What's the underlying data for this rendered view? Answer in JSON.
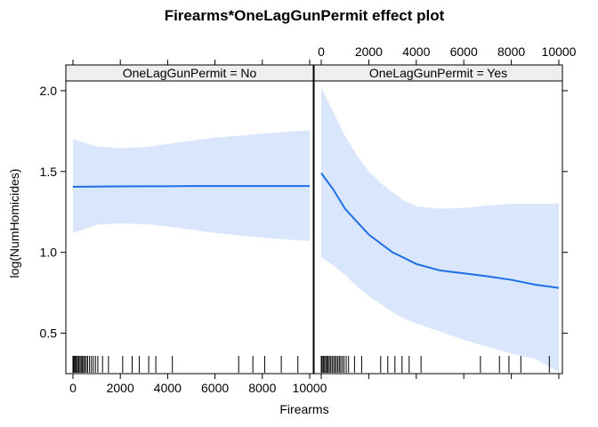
{
  "chart_data": {
    "type": "line",
    "title": "Firearms*OneLagGunPermit effect plot",
    "xlabel": "Firearms",
    "ylabel": "log(NumHomicides)",
    "xlim": [
      -300,
      10150
    ],
    "ylim": [
      0.25,
      2.06
    ],
    "x_ticks": [
      0,
      2000,
      4000,
      6000,
      8000,
      10000
    ],
    "x_tick_labels": [
      "0",
      "2000",
      "4000",
      "6000",
      "8000",
      "10000"
    ],
    "y_ticks": [
      0.5,
      1.0,
      1.5,
      2.0
    ],
    "y_tick_labels": [
      "0.5",
      "1.0",
      "1.5",
      "2.0"
    ],
    "grid": false,
    "colors": {
      "line": "#1f6fe5",
      "band": "#dae6fb",
      "strip": "#eeeeee",
      "rug": "#000000"
    },
    "panels": [
      {
        "strip": "OneLagGunPermit = No",
        "x_axis_position": "bottom",
        "x": [
          0,
          1000,
          2000,
          3000,
          4000,
          5000,
          6000,
          7000,
          8000,
          9000,
          10000
        ],
        "fit": [
          1.405,
          1.407,
          1.408,
          1.409,
          1.409,
          1.41,
          1.41,
          1.41,
          1.41,
          1.41,
          1.41
        ],
        "upper": [
          1.7,
          1.655,
          1.645,
          1.65,
          1.67,
          1.69,
          1.71,
          1.72,
          1.735,
          1.745,
          1.755
        ],
        "lower": [
          1.12,
          1.17,
          1.18,
          1.175,
          1.16,
          1.14,
          1.12,
          1.105,
          1.09,
          1.08,
          1.07
        ],
        "rug": [
          0,
          30,
          70,
          110,
          150,
          200,
          250,
          300,
          350,
          400,
          450,
          500,
          560,
          620,
          700,
          780,
          860,
          950,
          1050,
          1250,
          1500,
          2100,
          2500,
          2800,
          3200,
          3500,
          4200,
          7000,
          7600,
          8100,
          8800,
          9500
        ]
      },
      {
        "strip": "OneLagGunPermit = Yes",
        "x_axis_position": "top",
        "x": [
          0,
          500,
          1000,
          1500,
          2000,
          2500,
          3000,
          3500,
          4000,
          5000,
          6000,
          7000,
          8000,
          9000,
          10000
        ],
        "fit": [
          1.49,
          1.39,
          1.27,
          1.19,
          1.11,
          1.055,
          1.0,
          0.965,
          0.928,
          0.888,
          0.87,
          0.852,
          0.83,
          0.8,
          0.78
        ],
        "upper": [
          2.02,
          1.87,
          1.72,
          1.6,
          1.5,
          1.43,
          1.37,
          1.32,
          1.285,
          1.27,
          1.275,
          1.29,
          1.3,
          1.3,
          1.3
        ],
        "lower": [
          0.97,
          0.92,
          0.86,
          0.79,
          0.73,
          0.68,
          0.63,
          0.59,
          0.56,
          0.51,
          0.46,
          0.415,
          0.375,
          0.34,
          0.26
        ],
        "rug": [
          0,
          40,
          90,
          140,
          190,
          240,
          290,
          340,
          400,
          460,
          520,
          580,
          640,
          700,
          760,
          820,
          890,
          960,
          1050,
          1150,
          1400,
          1700,
          2500,
          2800,
          3100,
          3400,
          3700,
          4200,
          6700,
          7500,
          7900,
          8400,
          9600
        ]
      }
    ]
  }
}
